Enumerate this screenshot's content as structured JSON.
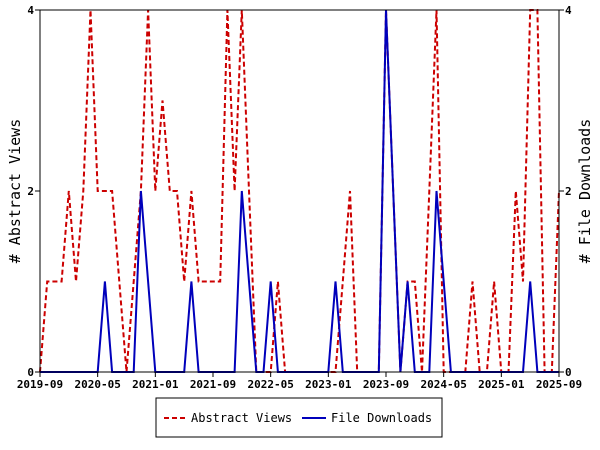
{
  "chart_data": {
    "type": "line",
    "title": "",
    "xlabel": "",
    "ylabel_left": "# Abstract Views",
    "ylabel_right": "# File Downloads",
    "x_tick_labels": [
      "2019-09",
      "2020-05",
      "2021-01",
      "2021-09",
      "2022-05",
      "2023-01",
      "2023-09",
      "2024-05",
      "2025-01",
      "2025-09"
    ],
    "x_range_months": [
      "2019-09",
      "2025-09"
    ],
    "y_ticks_left": [
      0,
      2,
      4
    ],
    "y_ticks_right": [
      0,
      2,
      4
    ],
    "ylim": [
      0,
      4
    ],
    "grid": false,
    "legend_position": "bottom",
    "series": [
      {
        "name": "Abstract Views",
        "color": "#cc0000",
        "style": "dashed",
        "points": [
          [
            "2019-09",
            0
          ],
          [
            "2019-10",
            1
          ],
          [
            "2019-11",
            1
          ],
          [
            "2019-12",
            1
          ],
          [
            "2020-01",
            2
          ],
          [
            "2020-02",
            1
          ],
          [
            "2020-03",
            2
          ],
          [
            "2020-04",
            4
          ],
          [
            "2020-05",
            2
          ],
          [
            "2020-06",
            2
          ],
          [
            "2020-07",
            2
          ],
          [
            "2020-08",
            1
          ],
          [
            "2020-09",
            0
          ],
          [
            "2020-10",
            1
          ],
          [
            "2020-11",
            2
          ],
          [
            "2020-12",
            4
          ],
          [
            "2021-01",
            2
          ],
          [
            "2021-02",
            3
          ],
          [
            "2021-03",
            2
          ],
          [
            "2021-04",
            2
          ],
          [
            "2021-05",
            1
          ],
          [
            "2021-06",
            2
          ],
          [
            "2021-07",
            1
          ],
          [
            "2021-08",
            1
          ],
          [
            "2021-09",
            1
          ],
          [
            "2021-10",
            1
          ],
          [
            "2021-11",
            4
          ],
          [
            "2021-12",
            2
          ],
          [
            "2022-01",
            4
          ],
          [
            "2022-02",
            2
          ],
          [
            "2022-03",
            0
          ],
          [
            "2022-04",
            0
          ],
          [
            "2022-05",
            0
          ],
          [
            "2022-06",
            1
          ],
          [
            "2022-07",
            0
          ],
          [
            "2022-08",
            0
          ],
          [
            "2022-09",
            0
          ],
          [
            "2022-10",
            0
          ],
          [
            "2022-11",
            0
          ],
          [
            "2022-12",
            0
          ],
          [
            "2023-01",
            0
          ],
          [
            "2023-02",
            0
          ],
          [
            "2023-03",
            1
          ],
          [
            "2023-04",
            2
          ],
          [
            "2023-05",
            0
          ],
          [
            "2023-06",
            0
          ],
          [
            "2023-07",
            0
          ],
          [
            "2023-08",
            0
          ],
          [
            "2023-09",
            4
          ],
          [
            "2023-10",
            2
          ],
          [
            "2023-11",
            0
          ],
          [
            "2023-12",
            1
          ],
          [
            "2024-01",
            1
          ],
          [
            "2024-02",
            0
          ],
          [
            "2024-03",
            2
          ],
          [
            "2024-04",
            4
          ],
          [
            "2024-05",
            0
          ],
          [
            "2024-06",
            0
          ],
          [
            "2024-07",
            0
          ],
          [
            "2024-08",
            0
          ],
          [
            "2024-09",
            1
          ],
          [
            "2024-10",
            0
          ],
          [
            "2024-11",
            0
          ],
          [
            "2024-12",
            1
          ],
          [
            "2025-01",
            0
          ],
          [
            "2025-02",
            0
          ],
          [
            "2025-03",
            2
          ],
          [
            "2025-04",
            1
          ],
          [
            "2025-05",
            4
          ],
          [
            "2025-06",
            4
          ],
          [
            "2025-07",
            0
          ],
          [
            "2025-08",
            0
          ],
          [
            "2025-09",
            2
          ]
        ]
      },
      {
        "name": "File Downloads",
        "color": "#0000bb",
        "style": "solid",
        "points": [
          [
            "2019-09",
            0
          ],
          [
            "2019-10",
            0
          ],
          [
            "2019-11",
            0
          ],
          [
            "2019-12",
            0
          ],
          [
            "2020-01",
            0
          ],
          [
            "2020-02",
            0
          ],
          [
            "2020-03",
            0
          ],
          [
            "2020-04",
            0
          ],
          [
            "2020-05",
            0
          ],
          [
            "2020-06",
            1
          ],
          [
            "2020-07",
            0
          ],
          [
            "2020-08",
            0
          ],
          [
            "2020-09",
            0
          ],
          [
            "2020-10",
            0
          ],
          [
            "2020-11",
            2
          ],
          [
            "2020-12",
            1
          ],
          [
            "2021-01",
            0
          ],
          [
            "2021-02",
            0
          ],
          [
            "2021-03",
            0
          ],
          [
            "2021-04",
            0
          ],
          [
            "2021-05",
            0
          ],
          [
            "2021-06",
            1
          ],
          [
            "2021-07",
            0
          ],
          [
            "2021-08",
            0
          ],
          [
            "2021-09",
            0
          ],
          [
            "2021-10",
            0
          ],
          [
            "2021-11",
            0
          ],
          [
            "2021-12",
            0
          ],
          [
            "2022-01",
            2
          ],
          [
            "2022-02",
            1
          ],
          [
            "2022-03",
            0
          ],
          [
            "2022-04",
            0
          ],
          [
            "2022-05",
            1
          ],
          [
            "2022-06",
            0
          ],
          [
            "2022-07",
            0
          ],
          [
            "2022-08",
            0
          ],
          [
            "2022-09",
            0
          ],
          [
            "2022-10",
            0
          ],
          [
            "2022-11",
            0
          ],
          [
            "2022-12",
            0
          ],
          [
            "2023-01",
            0
          ],
          [
            "2023-02",
            1
          ],
          [
            "2023-03",
            0
          ],
          [
            "2023-04",
            0
          ],
          [
            "2023-05",
            0
          ],
          [
            "2023-06",
            0
          ],
          [
            "2023-07",
            0
          ],
          [
            "2023-08",
            0
          ],
          [
            "2023-09",
            4
          ],
          [
            "2023-10",
            2
          ],
          [
            "2023-11",
            0
          ],
          [
            "2023-12",
            1
          ],
          [
            "2024-01",
            0
          ],
          [
            "2024-02",
            0
          ],
          [
            "2024-03",
            0
          ],
          [
            "2024-04",
            2
          ],
          [
            "2024-05",
            1
          ],
          [
            "2024-06",
            0
          ],
          [
            "2024-07",
            0
          ],
          [
            "2024-08",
            0
          ],
          [
            "2024-09",
            0
          ],
          [
            "2024-10",
            0
          ],
          [
            "2024-11",
            0
          ],
          [
            "2024-12",
            0
          ],
          [
            "2025-01",
            0
          ],
          [
            "2025-02",
            0
          ],
          [
            "2025-03",
            0
          ],
          [
            "2025-04",
            0
          ],
          [
            "2025-05",
            1
          ],
          [
            "2025-06",
            0
          ],
          [
            "2025-07",
            0
          ],
          [
            "2025-08",
            0
          ],
          [
            "2025-09",
            0
          ]
        ]
      }
    ]
  }
}
